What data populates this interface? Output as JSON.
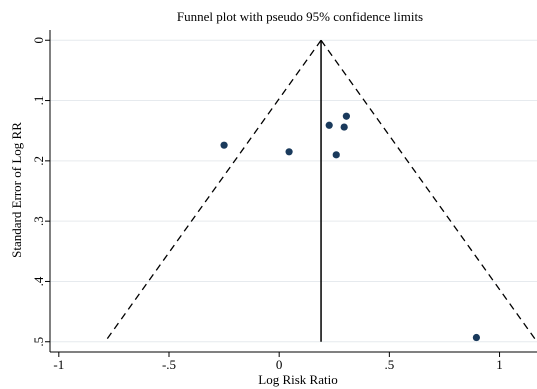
{
  "chart_data": {
    "type": "scatter",
    "title": "Funnel plot with pseudo 95% confidence limits",
    "x_label": "Log Risk Ratio",
    "y_label": "Standard Error of Log RR",
    "x": [
      -0.25,
      0.045,
      0.227,
      0.305,
      0.295,
      0.259,
      0.895
    ],
    "values": [
      0.174,
      0.185,
      0.141,
      0.126,
      0.144,
      0.19,
      0.493
    ],
    "color": "#1a3a5c",
    "xlim": [
      -1.04,
      1.17
    ],
    "ylim": [
      -0.017,
      0.517
    ],
    "y_inverted": true,
    "xticks": [
      -1,
      {
        "value": -0.5,
        "label": "-.5"
      },
      0,
      {
        "value": 0.5,
        "label": ".5"
      },
      1
    ],
    "yticks": [
      0,
      {
        "value": 0.1,
        "label": ".1"
      },
      {
        "value": 0.2,
        "label": ".2"
      },
      {
        "value": 0.3,
        "label": ".3"
      },
      {
        "value": 0.4,
        "label": ".4"
      },
      {
        "value": 0.5,
        "label": ".5"
      }
    ],
    "grid": true,
    "funnel": {
      "center": 0.19,
      "se_max": 0.5,
      "z": 1.96
    }
  }
}
